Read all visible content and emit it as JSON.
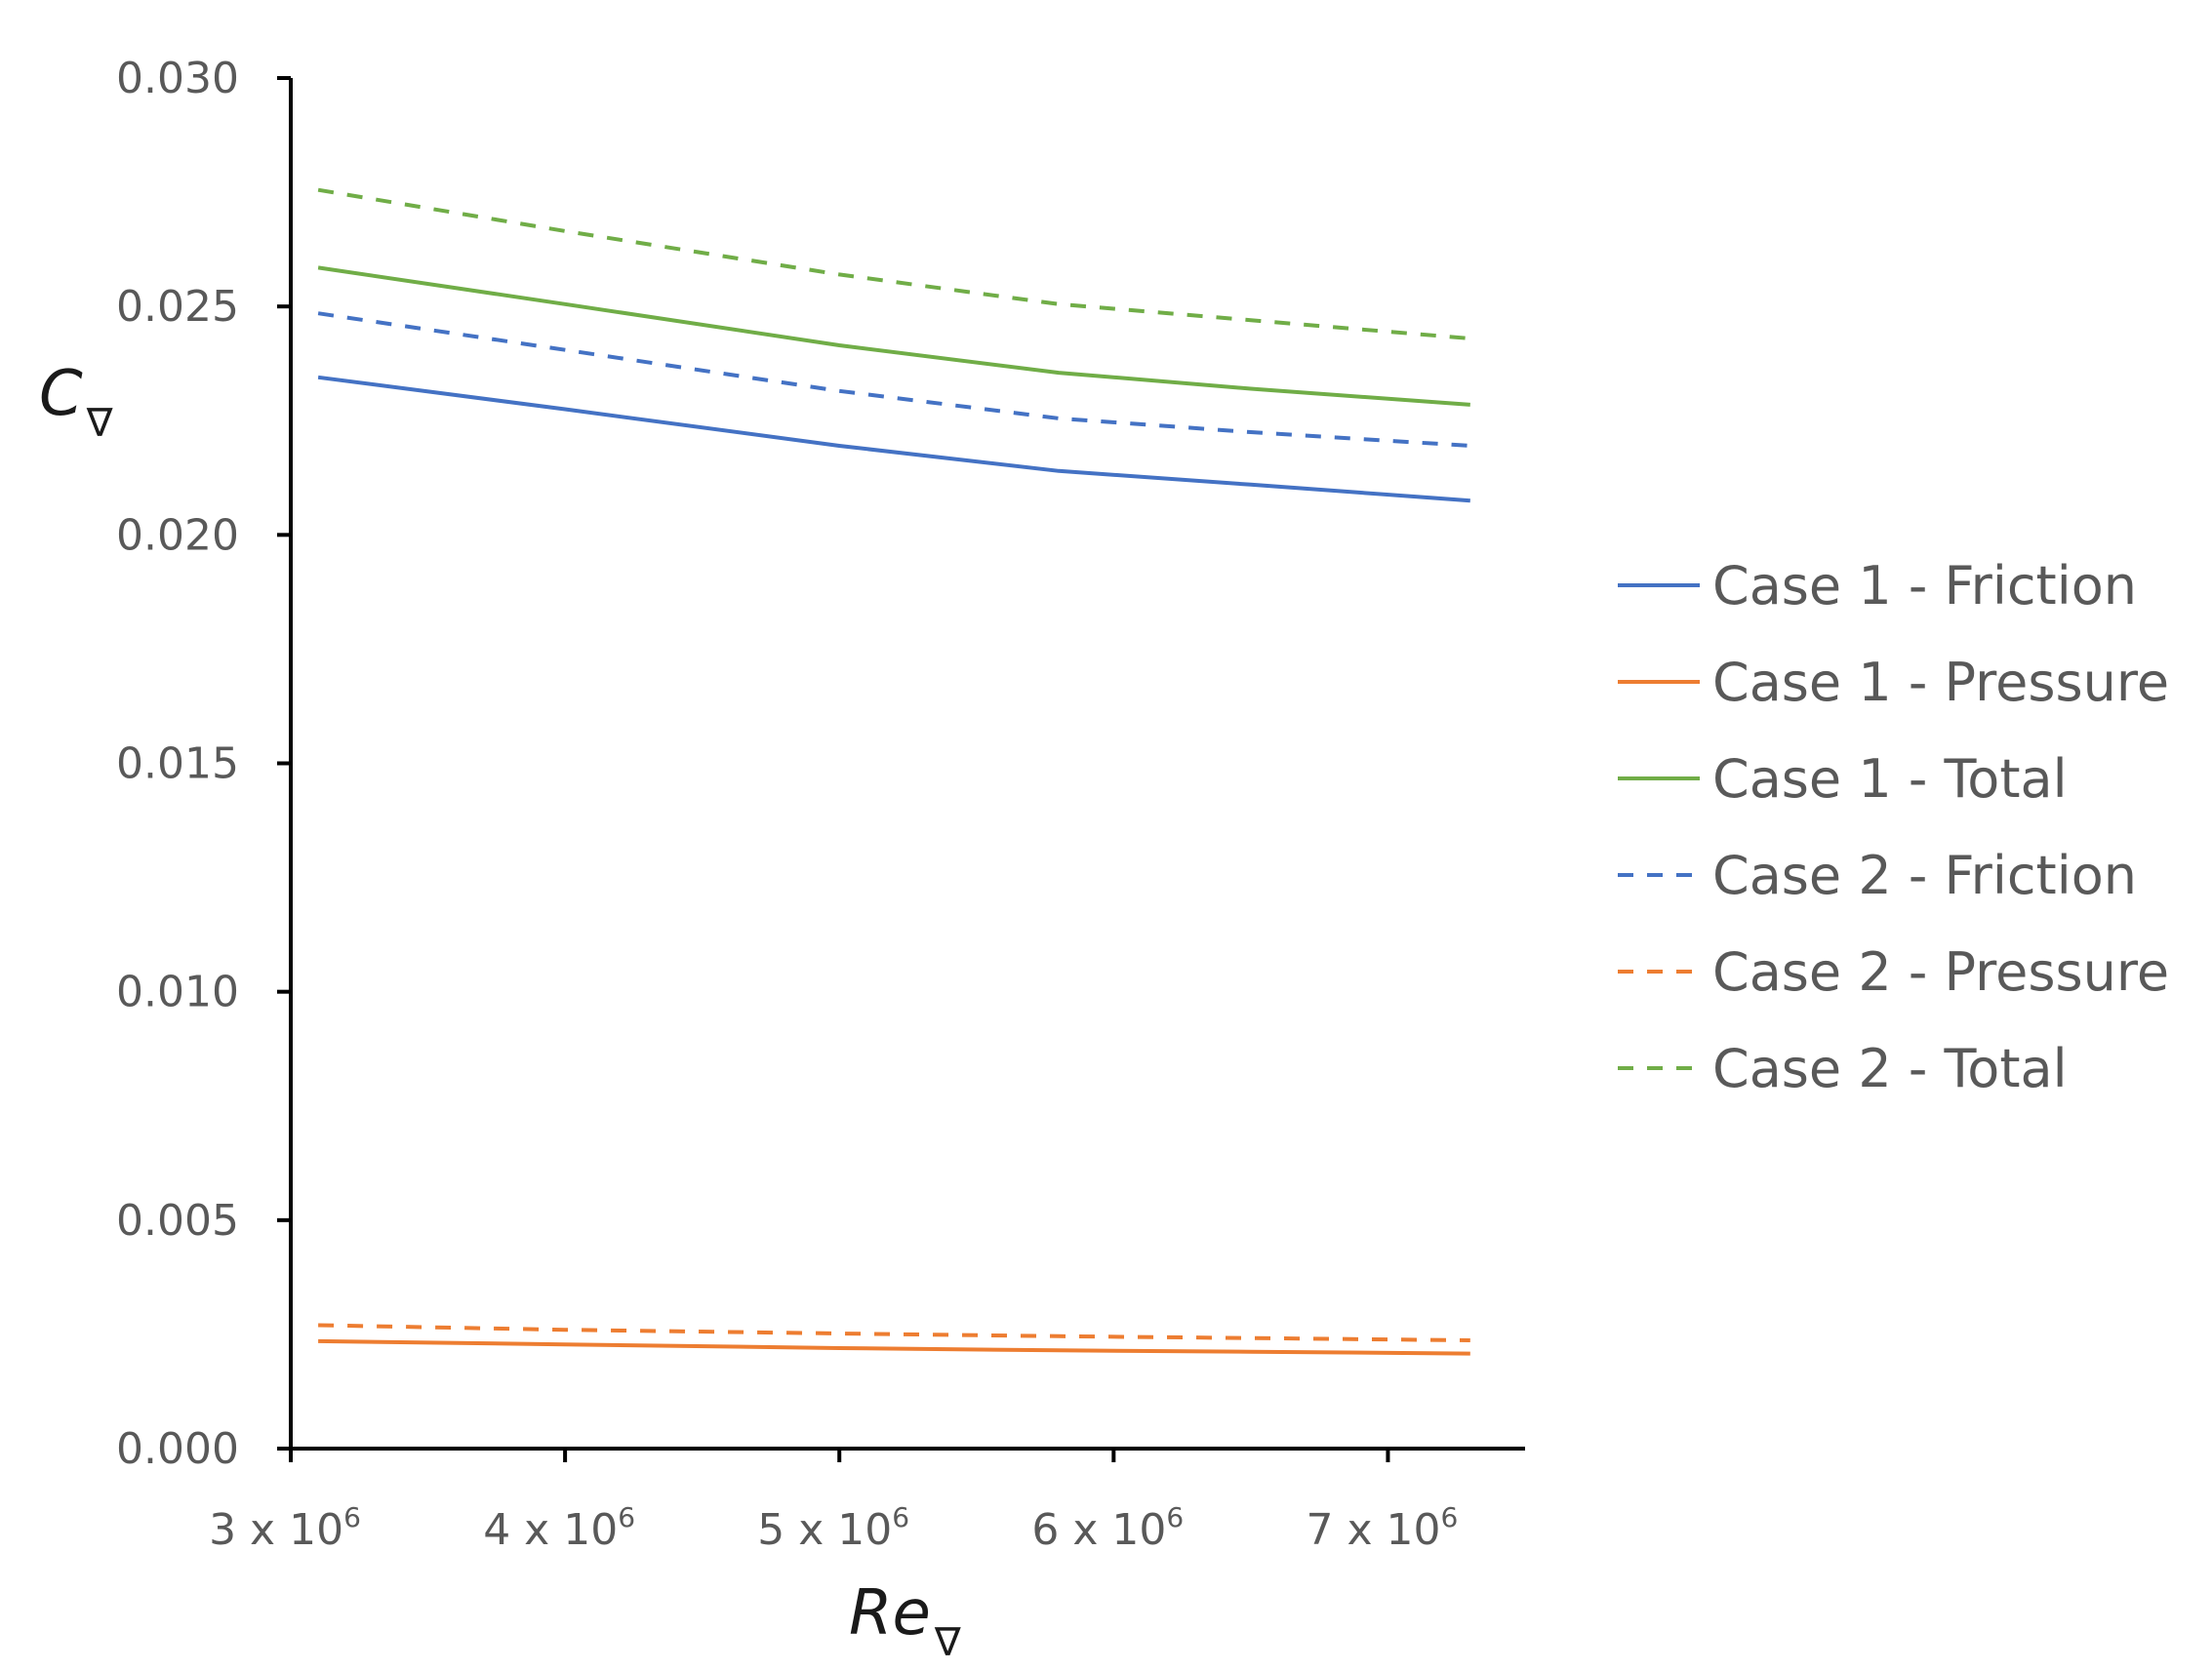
{
  "chart_data": {
    "type": "line",
    "title": "",
    "xlabel": "Re",
    "xlabel_subscript": "∇",
    "ylabel": "C",
    "ylabel_subscript": "∇",
    "xlim": [
      3000000,
      7500000
    ],
    "ylim": [
      0,
      0.03
    ],
    "x_ticks": [
      3000000,
      4000000,
      5000000,
      6000000,
      7000000
    ],
    "x_tick_labels": [
      {
        "base": "3 x 10",
        "exp": "6"
      },
      {
        "base": "4 x 10",
        "exp": "6"
      },
      {
        "base": "5 x 10",
        "exp": "6"
      },
      {
        "base": "6 x 10",
        "exp": "6"
      },
      {
        "base": "7 x 10",
        "exp": "6"
      }
    ],
    "y_ticks": [
      0,
      0.005,
      0.01,
      0.015,
      0.02,
      0.025,
      0.03
    ],
    "y_tick_labels": [
      "0.000",
      "0.005",
      "0.010",
      "0.015",
      "0.020",
      "0.025",
      "0.030"
    ],
    "grid": false,
    "legend_position": "right",
    "x": [
      3100000,
      4000000,
      5000000,
      5800000,
      6500000,
      7300000
    ],
    "series": [
      {
        "name": "Case 1 - Friction",
        "color": "#4472C4",
        "dash": "solid",
        "values": [
          0.02345,
          0.02275,
          0.02195,
          0.0214,
          0.0211,
          0.02075
        ]
      },
      {
        "name": "Case 1 - Pressure",
        "color": "#ED7D31",
        "dash": "solid",
        "values": [
          0.00235,
          0.00228,
          0.0022,
          0.00215,
          0.00212,
          0.00208
        ]
      },
      {
        "name": "Case 1 - Total",
        "color": "#70AD47",
        "dash": "solid",
        "values": [
          0.02585,
          0.02505,
          0.02415,
          0.02355,
          0.0232,
          0.02285
        ]
      },
      {
        "name": "Case 2 - Friction",
        "color": "#4472C4",
        "dash": "dashed",
        "values": [
          0.02485,
          0.02405,
          0.02315,
          0.02255,
          0.02225,
          0.02195
        ]
      },
      {
        "name": "Case 2 - Pressure",
        "color": "#ED7D31",
        "dash": "dashed",
        "values": [
          0.0027,
          0.0026,
          0.00252,
          0.00246,
          0.00242,
          0.00237
        ]
      },
      {
        "name": "Case 2 - Total",
        "color": "#70AD47",
        "dash": "dashed",
        "values": [
          0.02755,
          0.02665,
          0.0257,
          0.02505,
          0.0247,
          0.0243
        ]
      }
    ]
  }
}
